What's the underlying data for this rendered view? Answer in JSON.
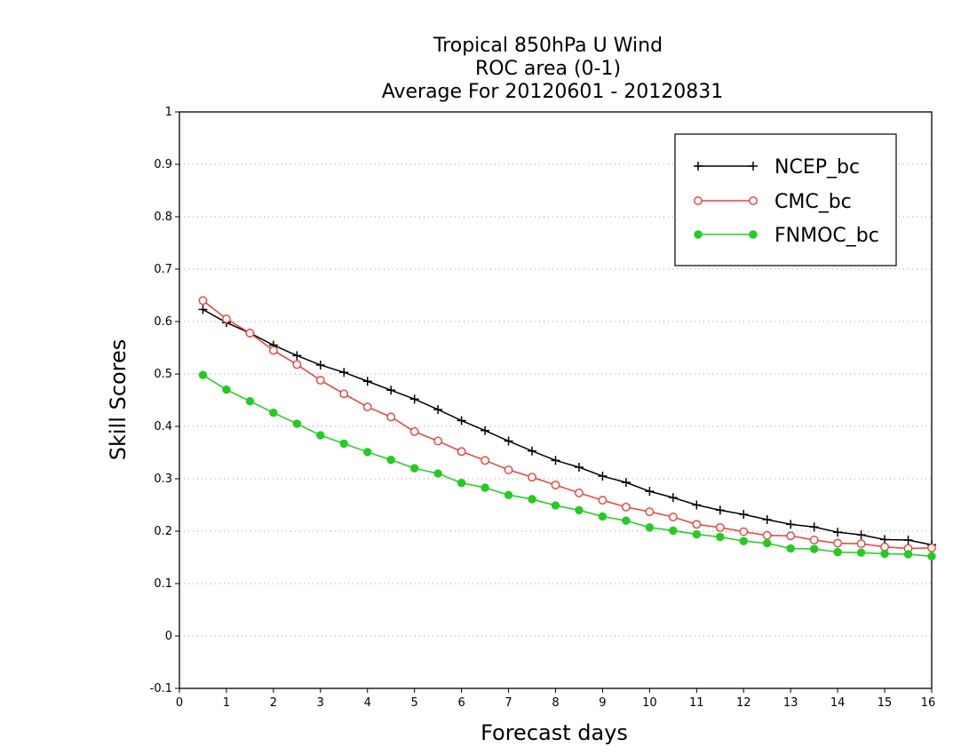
{
  "chart_data": {
    "type": "line",
    "title_lines": [
      "Tropical 850hPa U Wind",
      "ROC area (0-1)",
      "Average For 20120601 - 20120831"
    ],
    "xlabel": "Forecast days",
    "ylabel": "Skill Scores",
    "xlim": [
      0,
      16
    ],
    "ylim": [
      -0.1,
      1
    ],
    "xticks": [
      "0",
      "1",
      "2",
      "3",
      "4",
      "5",
      "6",
      "7",
      "8",
      "9",
      "10",
      "11",
      "12",
      "13",
      "14",
      "15",
      "16"
    ],
    "yticks": [
      "-0.1",
      "0",
      "0.1",
      "0.2",
      "0.3",
      "0.4",
      "0.5",
      "0.6",
      "0.7",
      "0.8",
      "0.9",
      "1"
    ],
    "grid": "dotted horizontal",
    "legend_position": "top-right",
    "x": [
      0.5,
      1,
      1.5,
      2,
      2.5,
      3,
      3.5,
      4,
      4.5,
      5,
      5.5,
      6,
      6.5,
      7,
      7.5,
      8,
      8.5,
      9,
      9.5,
      10,
      10.5,
      11,
      11.5,
      12,
      12.5,
      13,
      13.5,
      14,
      14.5,
      15,
      15.5,
      16
    ],
    "series": [
      {
        "name": "NCEP_bc",
        "color": "#000000",
        "marker": "plus",
        "values": [
          0.623,
          0.598,
          0.578,
          0.555,
          0.535,
          0.517,
          0.503,
          0.486,
          0.469,
          0.452,
          0.432,
          0.411,
          0.392,
          0.372,
          0.353,
          0.335,
          0.322,
          0.305,
          0.293,
          0.276,
          0.264,
          0.25,
          0.24,
          0.232,
          0.222,
          0.213,
          0.208,
          0.198,
          0.193,
          0.184,
          0.183,
          0.174
        ]
      },
      {
        "name": "CMC_bc",
        "color": "#e8403a",
        "marker": "open-circle",
        "values": [
          0.64,
          0.605,
          0.578,
          0.545,
          0.518,
          0.488,
          0.462,
          0.437,
          0.418,
          0.39,
          0.372,
          0.352,
          0.335,
          0.317,
          0.303,
          0.288,
          0.273,
          0.259,
          0.246,
          0.237,
          0.227,
          0.213,
          0.207,
          0.199,
          0.192,
          0.191,
          0.183,
          0.177,
          0.176,
          0.17,
          0.167,
          0.168
        ]
      },
      {
        "name": "FNMOC_bc",
        "color": "#22cc22",
        "marker": "filled-circle",
        "values": [
          0.498,
          0.47,
          0.448,
          0.426,
          0.405,
          0.383,
          0.367,
          0.351,
          0.336,
          0.32,
          0.31,
          0.292,
          0.283,
          0.269,
          0.261,
          0.249,
          0.24,
          0.228,
          0.22,
          0.207,
          0.201,
          0.194,
          0.189,
          0.181,
          0.177,
          0.167,
          0.166,
          0.16,
          0.159,
          0.157,
          0.156,
          0.152
        ]
      }
    ]
  }
}
